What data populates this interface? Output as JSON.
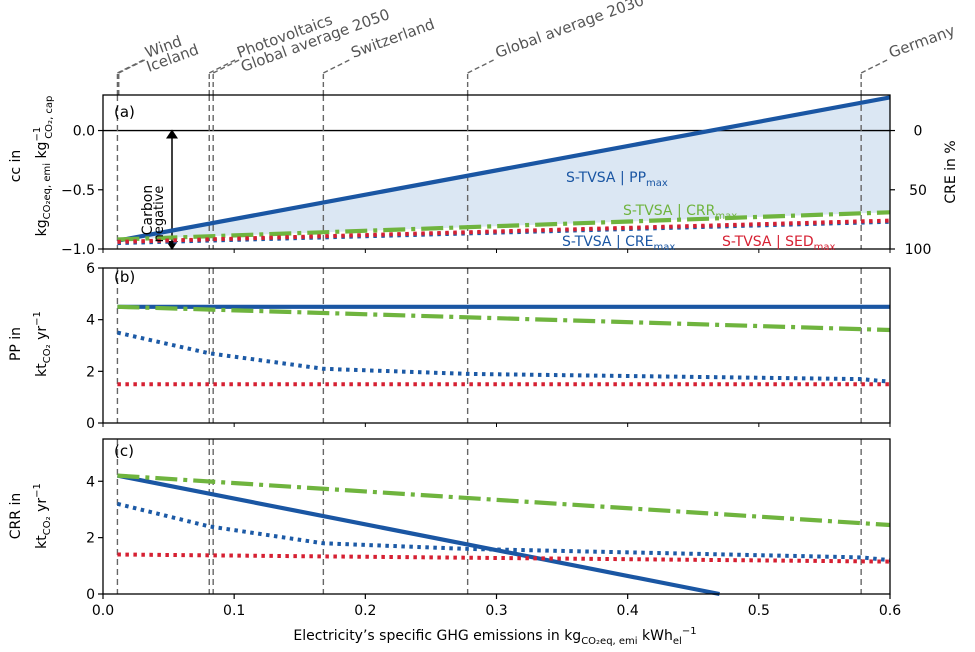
{
  "colors": {
    "blue": "#1a56a3",
    "green": "#6fb43e",
    "dblue": "#1c5aa6",
    "red": "#d62032",
    "shade": "#dbe7f3",
    "ref": "#666666"
  },
  "labels": {
    "xlabel_main": "Electricity’s specific GHG emissions in kg",
    "xlabel_sub1": "CO₂eq, emi",
    "xlabel_mid": " kWh",
    "xlabel_sub2": "el",
    "xlabel_sup": "−1",
    "a_ylabel1": "cc in",
    "a_ylabel2": "kg",
    "a_ylabel2_sub": "CO₂eq, emi",
    "a_ylabel2_mid": " kg",
    "a_ylabel2_sup": "−1",
    "a_ylabel2_sub2": "CO₂, cap",
    "a_y2label": "CRE in %",
    "b_ylabel1": "PP in",
    "b_ylabel2": "kt",
    "b_ylabel2_sub": "CO₂",
    "b_ylabel2_rest": " yr",
    "b_ylabel2_sup": "−1",
    "c_ylabel1": "CRR in",
    "c_ylabel2": "kt",
    "c_ylabel2_sub": "CO₂",
    "c_ylabel2_rest": " yr",
    "c_ylabel2_sup": "−1",
    "panel_a": "(a)",
    "panel_b": "(b)",
    "panel_c": "(c)",
    "carbon": "Carbon",
    "negative": "negative",
    "ann_pp": "S-TVSA | PP",
    "ann_crr": "S-TVSA | CRR",
    "ann_cre": "S-TVSA | CRE",
    "ann_sed": "S-TVSA | SED",
    "max": "max"
  },
  "refs": [
    {
      "name": "Wind",
      "x": 0.011
    },
    {
      "name": "Iceland",
      "x": 0.012
    },
    {
      "name": "Photovoltaics",
      "x": 0.081
    },
    {
      "name": "Global average 2050",
      "x": 0.084
    },
    {
      "name": "Switzerland",
      "x": 0.168
    },
    {
      "name": "Global average 2030",
      "x": 0.278
    },
    {
      "name": "Germany",
      "x": 0.578
    }
  ],
  "chart_data": [
    {
      "panel": "(a)",
      "type": "line",
      "xlim": [
        0,
        0.6
      ],
      "ylim": [
        -1.0,
        0.3
      ],
      "yticks": [
        -1.0,
        -0.5,
        0.0
      ],
      "ytick_labels": [
        "−1.0",
        "−0.5",
        "0.0"
      ],
      "y2ticks": [
        0,
        50,
        100
      ],
      "y2_label": "CRE in %",
      "series": [
        {
          "name": "S-TVSA | PP",
          "style": "solid",
          "color": "blue",
          "x": [
            0.011,
            0.6
          ],
          "y": [
            -0.93,
            0.28
          ]
        },
        {
          "name": "S-TVSA | CRR",
          "style": "dashdot",
          "color": "green",
          "x": [
            0.011,
            0.6
          ],
          "y": [
            -0.92,
            -0.69
          ]
        },
        {
          "name": "S-TVSA | CRE",
          "style": "dotted",
          "color": "dblue",
          "x": [
            0.011,
            0.6
          ],
          "y": [
            -0.95,
            -0.77
          ]
        },
        {
          "name": "S-TVSA | SED",
          "style": "dotted",
          "color": "red",
          "x": [
            0.011,
            0.6
          ],
          "y": [
            -0.94,
            -0.76
          ]
        }
      ]
    },
    {
      "panel": "(b)",
      "type": "line",
      "xlim": [
        0,
        0.6
      ],
      "ylim": [
        0,
        6
      ],
      "yticks": [
        0,
        2,
        4,
        6
      ],
      "series": [
        {
          "name": "PP",
          "style": "solid",
          "color": "blue",
          "x": [
            0.011,
            0.6
          ],
          "y": [
            4.5,
            4.5
          ]
        },
        {
          "name": "CRR",
          "style": "dashdot",
          "color": "green",
          "x": [
            0.011,
            0.6
          ],
          "y": [
            4.5,
            3.6
          ]
        },
        {
          "name": "CRE",
          "style": "dotted",
          "color": "dblue",
          "x": [
            0.011,
            0.081,
            0.168,
            0.278,
            0.578,
            0.6
          ],
          "y": [
            3.5,
            2.7,
            2.1,
            1.9,
            1.7,
            1.6
          ]
        },
        {
          "name": "SED",
          "style": "dotted",
          "color": "red",
          "x": [
            0.011,
            0.6
          ],
          "y": [
            1.5,
            1.5
          ]
        }
      ]
    },
    {
      "panel": "(c)",
      "type": "line",
      "xlim": [
        0,
        0.6
      ],
      "ylim": [
        0,
        5.5
      ],
      "yticks": [
        0,
        2,
        4
      ],
      "xticks": [
        0.0,
        0.1,
        0.2,
        0.3,
        0.4,
        0.5,
        0.6
      ],
      "series": [
        {
          "name": "PP",
          "style": "solid",
          "color": "blue",
          "x": [
            0.011,
            0.47
          ],
          "y": [
            4.2,
            0
          ]
        },
        {
          "name": "CRR",
          "style": "dashdot",
          "color": "green",
          "x": [
            0.011,
            0.6
          ],
          "y": [
            4.2,
            2.45
          ]
        },
        {
          "name": "CRE",
          "style": "dotted",
          "color": "dblue",
          "x": [
            0.011,
            0.081,
            0.168,
            0.278,
            0.578,
            0.6
          ],
          "y": [
            3.2,
            2.4,
            1.8,
            1.6,
            1.3,
            1.2
          ]
        },
        {
          "name": "SED",
          "style": "dotted",
          "color": "red",
          "x": [
            0.011,
            0.6
          ],
          "y": [
            1.4,
            1.15
          ]
        }
      ]
    }
  ]
}
